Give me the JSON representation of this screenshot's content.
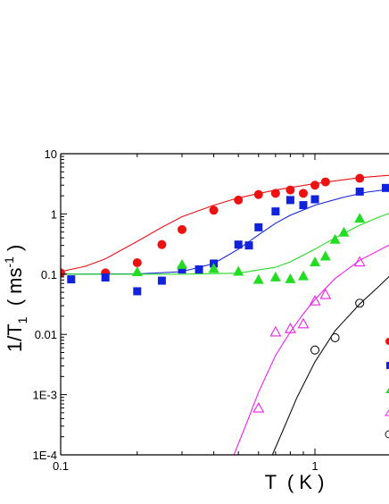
{
  "chart_data": {
    "type": "scatter",
    "title": "",
    "xlabel": "T  ( K )",
    "ylabel_html": [
      "1/T",
      "1",
      "  ( ms",
      "-1",
      " )"
    ],
    "x_scale": "log",
    "y_scale": "log",
    "xlim": [
      0.1,
      2.0
    ],
    "ylim": [
      0.0001,
      10
    ],
    "x_ticks": [
      {
        "value": 0.1,
        "label": "0.1"
      },
      {
        "value": 1,
        "label": "1"
      }
    ],
    "y_ticks": [
      {
        "value": 10,
        "label": "10"
      },
      {
        "value": 1,
        "label": "1"
      },
      {
        "value": 0.1,
        "label": "0.1"
      },
      {
        "value": 0.01,
        "label": "0.01"
      },
      {
        "value": 0.001,
        "label": "1E-3"
      },
      {
        "value": 0.0001,
        "label": "1E-4"
      }
    ],
    "grid": false,
    "legend": "right (cut off)",
    "series": [
      {
        "marker": "circle-filled",
        "color": "#ee1111",
        "points": [
          [
            0.1,
            0.105
          ],
          [
            0.15,
            0.105
          ],
          [
            0.2,
            0.155
          ],
          [
            0.25,
            0.31
          ],
          [
            0.3,
            0.55
          ],
          [
            0.4,
            1.15
          ],
          [
            0.5,
            1.7
          ],
          [
            0.6,
            2.1
          ],
          [
            0.7,
            2.2
          ],
          [
            0.8,
            2.5
          ],
          [
            0.9,
            2.2
          ],
          [
            1.0,
            3.0
          ],
          [
            1.1,
            3.4
          ],
          [
            1.5,
            3.9
          ]
        ],
        "fit": [
          [
            0.1,
            0.11
          ],
          [
            0.125,
            0.135
          ],
          [
            0.15,
            0.18
          ],
          [
            0.2,
            0.35
          ],
          [
            0.25,
            0.6
          ],
          [
            0.3,
            0.9
          ],
          [
            0.4,
            1.4
          ],
          [
            0.5,
            1.85
          ],
          [
            0.7,
            2.5
          ],
          [
            1.0,
            3.2
          ],
          [
            1.5,
            4.0
          ],
          [
            2.0,
            4.4
          ]
        ]
      },
      {
        "marker": "square-filled",
        "color": "#1122dd",
        "points": [
          [
            0.11,
            0.082
          ],
          [
            0.15,
            0.088
          ],
          [
            0.2,
            0.052
          ],
          [
            0.25,
            0.078
          ],
          [
            0.3,
            0.12
          ],
          [
            0.35,
            0.12
          ],
          [
            0.4,
            0.15
          ],
          [
            0.5,
            0.31
          ],
          [
            0.55,
            0.3
          ],
          [
            0.6,
            0.6
          ],
          [
            0.7,
            1.1
          ],
          [
            0.8,
            1.7
          ],
          [
            0.9,
            1.4
          ],
          [
            1.0,
            1.75
          ],
          [
            1.5,
            2.35
          ],
          [
            1.9,
            2.7
          ]
        ],
        "fit": [
          [
            0.1,
            0.1
          ],
          [
            0.2,
            0.101
          ],
          [
            0.3,
            0.11
          ],
          [
            0.4,
            0.15
          ],
          [
            0.5,
            0.26
          ],
          [
            0.6,
            0.45
          ],
          [
            0.7,
            0.7
          ],
          [
            0.8,
            0.95
          ],
          [
            1.0,
            1.4
          ],
          [
            1.3,
            1.9
          ],
          [
            1.6,
            2.3
          ],
          [
            2.0,
            2.6
          ]
        ]
      },
      {
        "marker": "triangle-filled",
        "color": "#22dd22",
        "points": [
          [
            0.2,
            0.11
          ],
          [
            0.3,
            0.145
          ],
          [
            0.4,
            0.125
          ],
          [
            0.5,
            0.112
          ],
          [
            0.6,
            0.082
          ],
          [
            0.7,
            0.09
          ],
          [
            0.8,
            0.084
          ],
          [
            0.9,
            0.094
          ],
          [
            1.0,
            0.16
          ],
          [
            1.1,
            0.2
          ],
          [
            1.2,
            0.38
          ],
          [
            1.3,
            0.5
          ],
          [
            1.5,
            0.85
          ]
        ],
        "fit": [
          [
            0.1,
            0.1
          ],
          [
            0.3,
            0.1
          ],
          [
            0.5,
            0.104
          ],
          [
            0.7,
            0.13
          ],
          [
            0.8,
            0.16
          ],
          [
            1.0,
            0.26
          ],
          [
            1.2,
            0.4
          ],
          [
            1.5,
            0.65
          ],
          [
            1.8,
            0.9
          ],
          [
            2.0,
            1.05
          ]
        ]
      },
      {
        "marker": "triangle-open",
        "color": "#ee22ee",
        "points": [
          [
            0.6,
            0.0006
          ],
          [
            0.7,
            0.011
          ],
          [
            0.8,
            0.0125
          ],
          [
            0.9,
            0.015
          ],
          [
            1.0,
            0.036
          ],
          [
            1.1,
            0.046
          ],
          [
            1.5,
            0.16
          ]
        ],
        "fit": [
          [
            0.48,
            0.0001
          ],
          [
            0.55,
            0.00042
          ],
          [
            0.6,
            0.0011
          ],
          [
            0.7,
            0.0045
          ],
          [
            0.8,
            0.011
          ],
          [
            0.9,
            0.022
          ],
          [
            1.0,
            0.038
          ],
          [
            1.2,
            0.085
          ],
          [
            1.5,
            0.17
          ],
          [
            2.0,
            0.32
          ]
        ]
      },
      {
        "marker": "circle-open",
        "color": "#111111",
        "points": [
          [
            1.0,
            0.0055
          ],
          [
            1.2,
            0.0088
          ],
          [
            1.5,
            0.033
          ]
        ],
        "fit": [
          [
            0.68,
            0.0001
          ],
          [
            0.75,
            0.00026
          ],
          [
            0.85,
            0.0009
          ],
          [
            1.0,
            0.0035
          ],
          [
            1.2,
            0.0115
          ],
          [
            1.5,
            0.032
          ],
          [
            1.8,
            0.065
          ],
          [
            2.0,
            0.1
          ]
        ]
      }
    ]
  }
}
